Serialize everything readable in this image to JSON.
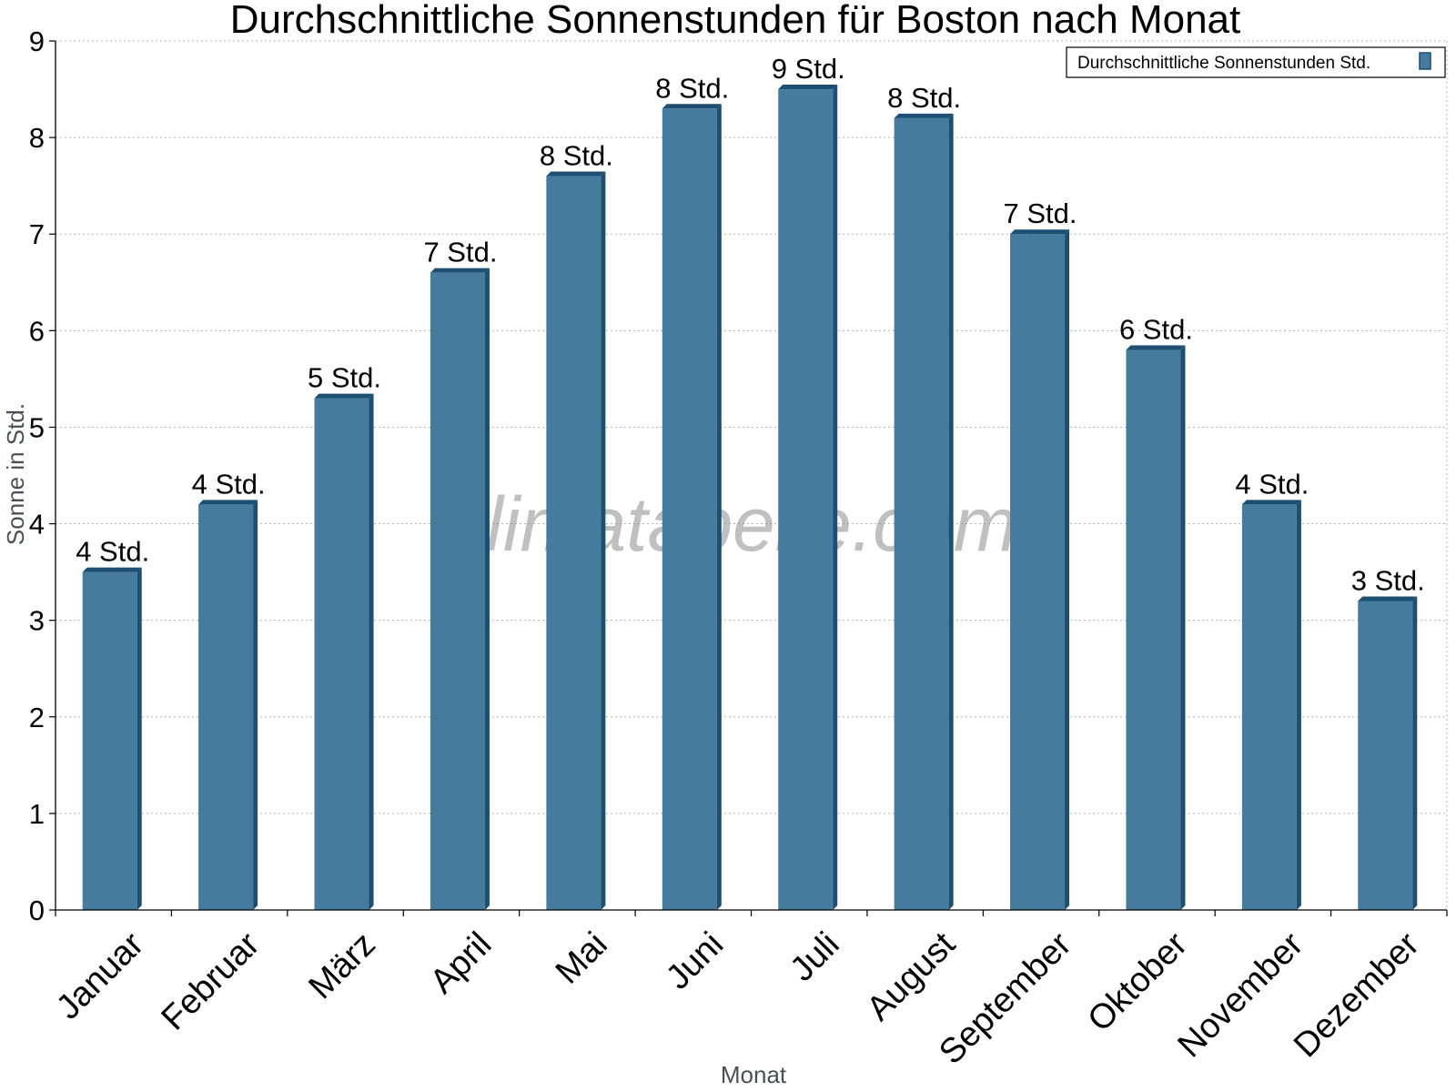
{
  "chart_data": {
    "type": "bar",
    "title": "Durchschnittliche Sonnenstunden für Boston nach Monat",
    "xlabel": "Monat",
    "ylabel": "Sonne in Std.",
    "ylim": [
      0,
      9
    ],
    "yticks": [
      "0",
      "1",
      "2",
      "3",
      "4",
      "5",
      "6",
      "7",
      "8",
      "9"
    ],
    "grid": true,
    "legend_position": "top-right",
    "categories": [
      "Januar",
      "Februar",
      "März",
      "April",
      "Mai",
      "Juni",
      "Juli",
      "August",
      "September",
      "Oktober",
      "November",
      "Dezember"
    ],
    "series": [
      {
        "name": "Durchschnittliche Sonnenstunden Std.",
        "values": [
          3.5,
          4.2,
          5.3,
          6.6,
          7.6,
          8.3,
          8.5,
          8.2,
          7.0,
          5.8,
          4.2,
          3.2
        ],
        "labels": [
          "4 Std.",
          "4 Std.",
          "5 Std.",
          "7 Std.",
          "8 Std.",
          "8 Std.",
          "9 Std.",
          "8 Std.",
          "7 Std.",
          "6 Std.",
          "4 Std.",
          "3 Std."
        ],
        "color": "#457b9d",
        "edge_color": "#1c4f72"
      }
    ]
  },
  "watermark": "klimatabelle.com"
}
